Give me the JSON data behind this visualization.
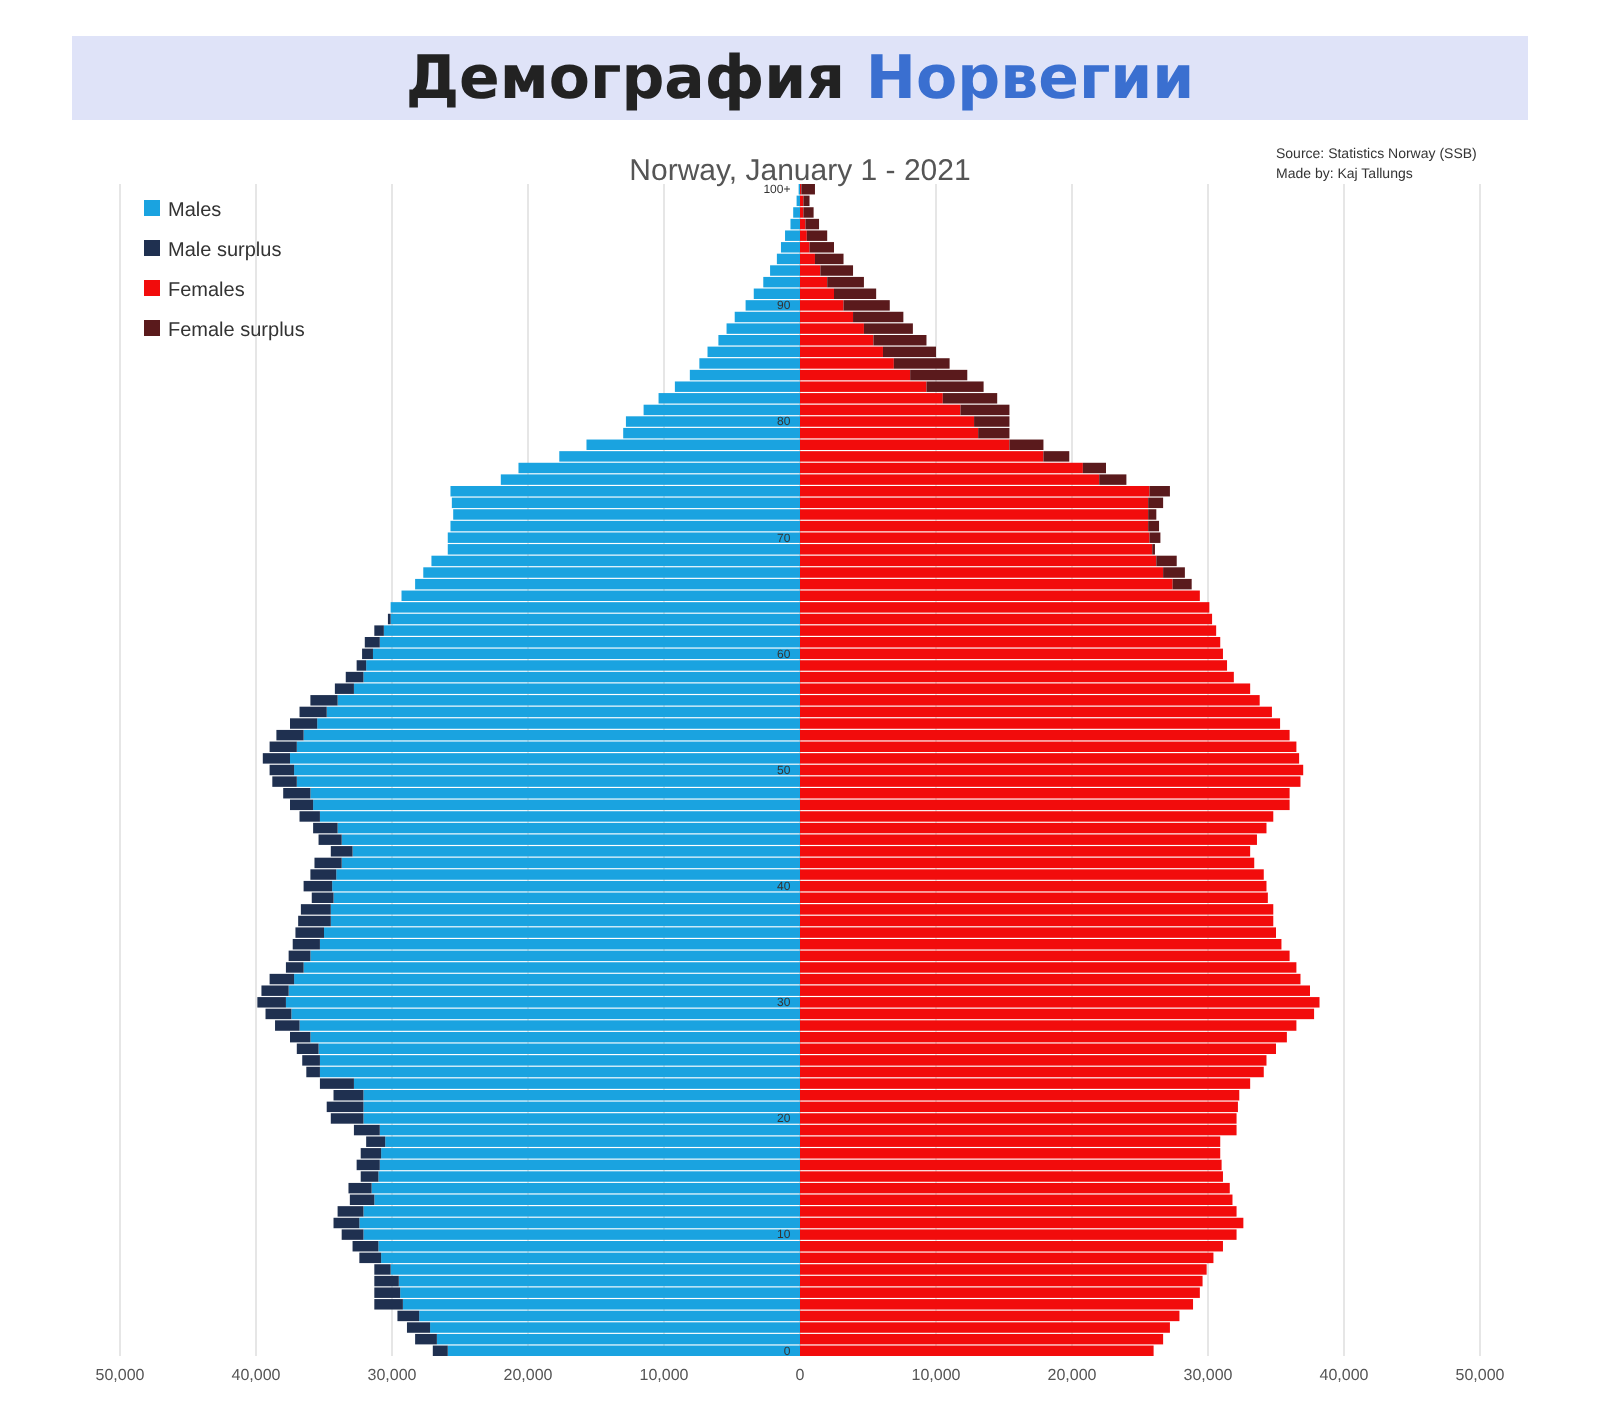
{
  "chart_data": {
    "type": "bar",
    "orientation": "horizontal",
    "stacked": true,
    "title": "Демография Норвегии",
    "subtitle": "Norway, January 1 - 2021",
    "annotations": [
      "Source: Statistics Norway (SSB)",
      "Made by: Kaj Tallungs"
    ],
    "categories": [
      "100+",
      null,
      null,
      null,
      null,
      null,
      null,
      null,
      null,
      null,
      "90",
      null,
      null,
      null,
      null,
      null,
      null,
      null,
      null,
      null,
      "80",
      null,
      null,
      null,
      null,
      null,
      null,
      null,
      null,
      null,
      "70",
      null,
      null,
      null,
      null,
      null,
      null,
      null,
      null,
      null,
      "60",
      null,
      null,
      null,
      null,
      null,
      null,
      null,
      null,
      null,
      "50",
      null,
      null,
      null,
      null,
      null,
      null,
      null,
      null,
      null,
      "40",
      null,
      null,
      null,
      null,
      null,
      null,
      null,
      null,
      null,
      "30",
      null,
      null,
      null,
      null,
      null,
      null,
      null,
      null,
      null,
      "20",
      null,
      null,
      null,
      null,
      null,
      null,
      null,
      null,
      null,
      "10",
      null,
      null,
      null,
      null,
      null,
      null,
      null,
      null,
      null,
      "0"
    ],
    "series": [
      {
        "name": "Males",
        "color": "#1aa3e0",
        "values": [
          -100,
          -250,
          -500,
          -700,
          -1100,
          -1400,
          -1700,
          -2200,
          -2700,
          -3400,
          -4000,
          -4800,
          -5400,
          -6000,
          -6800,
          -7400,
          -8100,
          -9200,
          -10400,
          -11500,
          -12800,
          -13000,
          -15700,
          -17700,
          -20700,
          -22000,
          -25700,
          -25600,
          -25500,
          -25700,
          -25900,
          -25900,
          -27100,
          -27700,
          -28300,
          -29300,
          -30100,
          -30100,
          -30600,
          -30900,
          -31400,
          -31900,
          -32100,
          -32800,
          -34000,
          -34800,
          -35500,
          -36500,
          -37000,
          -37500,
          -37200,
          -37000,
          -36000,
          -35800,
          -35300,
          -34000,
          -33700,
          -32900,
          -33700,
          -34100,
          -34400,
          -34300,
          -34500,
          -34500,
          -35000,
          -35300,
          -36000,
          -36500,
          -37200,
          -37600,
          -37800,
          -37400,
          -36800,
          -36000,
          -35400,
          -35300,
          -35300,
          -32800,
          -32100,
          -32100,
          -32100,
          -30900,
          -30500,
          -30800,
          -30900,
          -31000,
          -31500,
          -31300,
          -32100,
          -32400,
          -32100,
          -31000,
          -30800,
          -30100,
          -29500,
          -29400,
          -29200,
          -28000,
          -27200,
          -26700,
          -25900
        ]
      },
      {
        "name": "Male surplus",
        "color": "#1f3050",
        "values": [
          0,
          0,
          0,
          0,
          0,
          0,
          0,
          0,
          0,
          0,
          0,
          0,
          0,
          0,
          0,
          0,
          0,
          0,
          0,
          0,
          0,
          0,
          0,
          0,
          0,
          0,
          0,
          0,
          0,
          0,
          0,
          0,
          0,
          0,
          0,
          0,
          0,
          -200,
          -700,
          -1100,
          -800,
          -700,
          -1300,
          -1400,
          -2000,
          -2000,
          -2000,
          -2000,
          -2000,
          -2000,
          -1800,
          -1800,
          -2000,
          -1700,
          -1500,
          -1800,
          -1700,
          -1600,
          -2000,
          -1900,
          -2100,
          -1600,
          -2200,
          -2400,
          -2100,
          -2000,
          -1600,
          -1300,
          -1800,
          -2000,
          -2100,
          -1900,
          -1800,
          -1500,
          -1600,
          -1300,
          -1000,
          -2500,
          -2200,
          -2700,
          -2400,
          -1900,
          -1400,
          -1500,
          -1700,
          -1300,
          -1700,
          -1800,
          -1900,
          -1900,
          -1600,
          -1900,
          -1600,
          -1200,
          -1800,
          -1900,
          -2100,
          -1600,
          -1700,
          -1600,
          -1100
        ]
      },
      {
        "name": "Females",
        "color": "#f20c0c",
        "values": [
          100,
          250,
          250,
          400,
          500,
          700,
          1100,
          1500,
          2000,
          2500,
          3200,
          3900,
          4700,
          5400,
          6100,
          6900,
          8100,
          9300,
          10500,
          11800,
          12800,
          13100,
          15400,
          17900,
          20800,
          22000,
          25700,
          25600,
          25600,
          25600,
          25700,
          25900,
          26200,
          26700,
          27400,
          29400,
          30100,
          30300,
          30600,
          30900,
          31100,
          31400,
          31900,
          33100,
          33800,
          34700,
          35300,
          36000,
          36500,
          36700,
          37000,
          36800,
          36000,
          36000,
          34800,
          34300,
          33600,
          33100,
          33400,
          34100,
          34300,
          34400,
          34800,
          34800,
          35000,
          35400,
          36000,
          36500,
          36800,
          37500,
          38200,
          37800,
          36500,
          35800,
          35000,
          34300,
          34100,
          33100,
          32300,
          32200,
          32100,
          32100,
          30900,
          30900,
          31000,
          31100,
          31600,
          31800,
          32100,
          32600,
          32100,
          31100,
          30400,
          29900,
          29600,
          29400,
          28900,
          27900,
          27200,
          26700,
          26000
        ]
      },
      {
        "name": "Female surplus",
        "color": "#5a1a1c",
        "values": [
          1000,
          450,
          750,
          1000,
          1500,
          1800,
          2100,
          2400,
          2700,
          3100,
          3400,
          3700,
          3600,
          3900,
          3900,
          4100,
          4200,
          4200,
          4000,
          3600,
          2600,
          2300,
          2500,
          1900,
          1700,
          2000,
          1500,
          1100,
          600,
          800,
          800,
          200,
          1500,
          1600,
          1400,
          0,
          0,
          0,
          0,
          0,
          0,
          0,
          0,
          0,
          0,
          0,
          0,
          0,
          0,
          0,
          0,
          0,
          0,
          0,
          0,
          0,
          0,
          0,
          0,
          0,
          0,
          0,
          0,
          0,
          0,
          0,
          0,
          0,
          0,
          0,
          0,
          0,
          0,
          0,
          0,
          0,
          0,
          0,
          0,
          0,
          0,
          0,
          0,
          0,
          0,
          0,
          0,
          0,
          0,
          0,
          0,
          0,
          0,
          0,
          0,
          0,
          0,
          0,
          0,
          0,
          0
        ]
      }
    ],
    "xlim": [
      -50000,
      50000
    ],
    "xticks": [
      {
        "value": -50000,
        "label": "50,000"
      },
      {
        "value": -40000,
        "label": "40,000"
      },
      {
        "value": -30000,
        "label": "30,000"
      },
      {
        "value": -20000,
        "label": "20,000"
      },
      {
        "value": -10000,
        "label": "10,000"
      },
      0,
      {
        "value": 10000,
        "label": "10,000"
      },
      {
        "value": 20000,
        "label": "20,000"
      },
      {
        "value": 30000,
        "label": "30,000"
      },
      {
        "value": 40000,
        "label": "40,000"
      },
      {
        "value": 50000,
        "label": "50,000"
      }
    ],
    "grid": "x",
    "legend": "top left"
  }
}
